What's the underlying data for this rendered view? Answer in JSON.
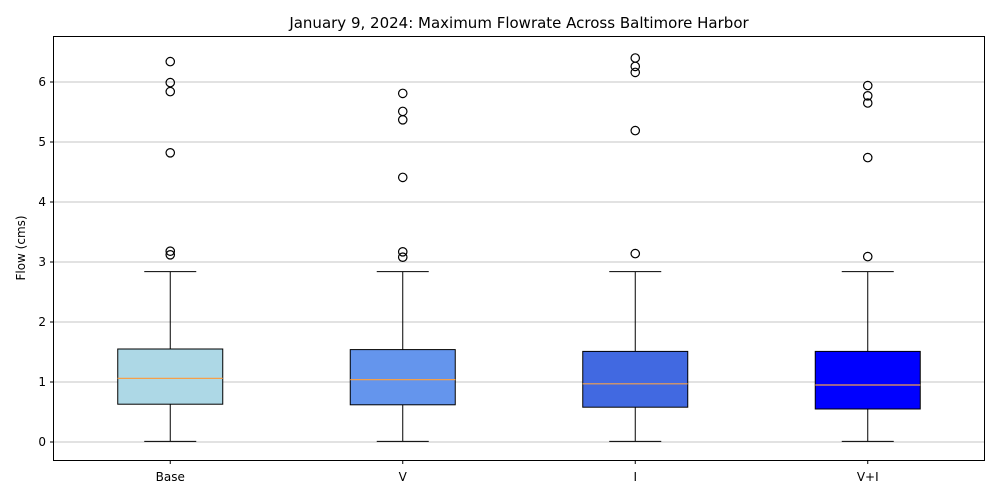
{
  "chart_data": {
    "type": "box",
    "title": "January 9, 2024: Maximum Flowrate Across Baltimore Harbor",
    "xlabel": "",
    "ylabel": "Flow (cms)",
    "ylim": [
      -0.3,
      6.75
    ],
    "yticks": [
      0,
      1,
      2,
      3,
      4,
      5,
      6
    ],
    "grid": "y",
    "categories": [
      "Base",
      "V",
      "I",
      "V+I"
    ],
    "series": [
      {
        "category": "Base",
        "color": "#add8e6",
        "whisker_low": 0.01,
        "q1": 0.63,
        "median": 1.06,
        "q3": 1.55,
        "whisker_high": 2.84,
        "outliers": [
          3.12,
          3.18,
          4.82,
          5.84,
          5.99,
          6.34
        ]
      },
      {
        "category": "V",
        "color": "#6495ed",
        "whisker_low": 0.01,
        "q1": 0.62,
        "median": 1.04,
        "q3": 1.54,
        "whisker_high": 2.84,
        "outliers": [
          3.08,
          3.17,
          4.41,
          5.37,
          5.51,
          5.81
        ]
      },
      {
        "category": "I",
        "color": "#4169e1",
        "whisker_low": 0.01,
        "q1": 0.58,
        "median": 0.97,
        "q3": 1.51,
        "whisker_high": 2.84,
        "outliers": [
          3.14,
          5.19,
          6.16,
          6.26,
          6.4
        ]
      },
      {
        "category": "V+I",
        "color": "#0000ff",
        "whisker_low": 0.01,
        "q1": 0.55,
        "median": 0.95,
        "q3": 1.51,
        "whisker_high": 2.84,
        "outliers": [
          3.09,
          4.74,
          5.65,
          5.77,
          5.94
        ]
      }
    ]
  }
}
